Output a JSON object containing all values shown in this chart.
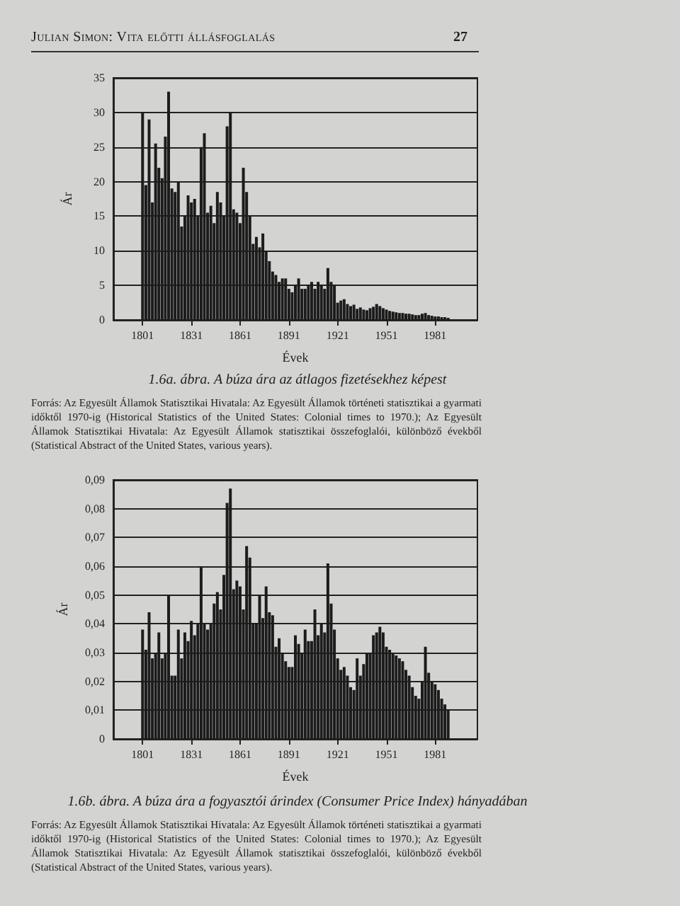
{
  "chart_data": [
    {
      "type": "bar",
      "title": "1.6a. ábra. A búza ára az átlagos fizetésekhez képest",
      "xlabel": "Évek",
      "ylabel": "Ár",
      "x": [
        1801,
        1803,
        1805,
        1807,
        1809,
        1811,
        1813,
        1815,
        1817,
        1819,
        1821,
        1823,
        1825,
        1827,
        1829,
        1831,
        1833,
        1835,
        1837,
        1839,
        1841,
        1843,
        1845,
        1847,
        1849,
        1851,
        1853,
        1855,
        1857,
        1859,
        1861,
        1863,
        1865,
        1867,
        1869,
        1871,
        1873,
        1875,
        1877,
        1879,
        1881,
        1883,
        1885,
        1887,
        1889,
        1891,
        1893,
        1895,
        1897,
        1899,
        1901,
        1903,
        1905,
        1907,
        1909,
        1911,
        1913,
        1915,
        1917,
        1919,
        1921,
        1923,
        1925,
        1927,
        1929,
        1931,
        1933,
        1935,
        1937,
        1939,
        1941,
        1943,
        1945,
        1947,
        1949,
        1951,
        1953,
        1955,
        1957,
        1959,
        1961,
        1963,
        1965,
        1967,
        1969,
        1971,
        1973,
        1975,
        1977,
        1979,
        1981,
        1983,
        1985,
        1987,
        1989
      ],
      "values": [
        30,
        19.5,
        29,
        17,
        25.5,
        22,
        20.5,
        26.5,
        33,
        19,
        18.5,
        20,
        13.5,
        15,
        18,
        17,
        17.5,
        15,
        25,
        27,
        15.5,
        16.5,
        14,
        18.5,
        17,
        15,
        28,
        30,
        16,
        15.5,
        14,
        22,
        18.5,
        15,
        11,
        12,
        10.5,
        12.5,
        10,
        8.5,
        7,
        6.5,
        5.5,
        6,
        6,
        4.5,
        4,
        5,
        6,
        4.5,
        4.5,
        5,
        5.5,
        4.5,
        5.5,
        5,
        4.5,
        7.5,
        5.5,
        5,
        2.5,
        2.8,
        3,
        2.3,
        2,
        2.2,
        1.6,
        1.8,
        1.5,
        1.4,
        1.7,
        1.9,
        2.3,
        2,
        1.7,
        1.5,
        1.3,
        1.2,
        1.1,
        1,
        1,
        0.9,
        0.9,
        0.8,
        0.7,
        0.7,
        0.9,
        1,
        0.7,
        0.6,
        0.5,
        0.5,
        0.4,
        0.4,
        0.3
      ],
      "color": "#1c1c1c",
      "xlim": [
        1783,
        2007
      ],
      "xticks": [
        1801,
        1831,
        1861,
        1891,
        1921,
        1951,
        1981
      ],
      "ylim": [
        0,
        35
      ],
      "yticks": [
        0,
        5,
        10,
        15,
        20,
        25,
        30,
        35
      ],
      "grid": "y",
      "annotations": [
        "Julian Simon: Vita előtti állásfoglalás",
        "27",
        "Forrás: Az Egyesült Államok Statisztikai Hivatala: Az Egyesült Államok történeti statisztikai a gyarmati időktől 1970-ig (Historical Statistics of the United States: Colonial times to 1970.); Az Egyesült Államok Statisztikai Hivatala: Az Egyesült Államok statisztikai összefoglalói, különböző évekből (Statistical Abstract of the United States, various years)."
      ]
    },
    {
      "type": "bar",
      "title": "1.6b. ábra. A búza ára a fogyasztói árindex (Consumer Price Index) hányadában",
      "xlabel": "Évek",
      "ylabel": "Ár",
      "x": [
        1801,
        1803,
        1805,
        1807,
        1809,
        1811,
        1813,
        1815,
        1817,
        1819,
        1821,
        1823,
        1825,
        1827,
        1829,
        1831,
        1833,
        1835,
        1837,
        1839,
        1841,
        1843,
        1845,
        1847,
        1849,
        1851,
        1853,
        1855,
        1857,
        1859,
        1861,
        1863,
        1865,
        1867,
        1869,
        1871,
        1873,
        1875,
        1877,
        1879,
        1881,
        1883,
        1885,
        1887,
        1889,
        1891,
        1893,
        1895,
        1897,
        1899,
        1901,
        1903,
        1905,
        1907,
        1909,
        1911,
        1913,
        1915,
        1917,
        1919,
        1921,
        1923,
        1925,
        1927,
        1929,
        1931,
        1933,
        1935,
        1937,
        1939,
        1941,
        1943,
        1945,
        1947,
        1949,
        1951,
        1953,
        1955,
        1957,
        1959,
        1961,
        1963,
        1965,
        1967,
        1969,
        1971,
        1973,
        1975,
        1977,
        1979,
        1981,
        1983,
        1985,
        1987,
        1989
      ],
      "values": [
        0.038,
        0.031,
        0.044,
        0.028,
        0.03,
        0.037,
        0.028,
        0.03,
        0.05,
        0.022,
        0.022,
        0.038,
        0.028,
        0.037,
        0.034,
        0.041,
        0.036,
        0.04,
        0.06,
        0.04,
        0.038,
        0.04,
        0.047,
        0.051,
        0.045,
        0.057,
        0.082,
        0.087,
        0.052,
        0.055,
        0.053,
        0.045,
        0.067,
        0.063,
        0.04,
        0.04,
        0.05,
        0.042,
        0.053,
        0.044,
        0.043,
        0.032,
        0.035,
        0.03,
        0.027,
        0.025,
        0.025,
        0.036,
        0.033,
        0.03,
        0.038,
        0.034,
        0.034,
        0.045,
        0.036,
        0.04,
        0.037,
        0.061,
        0.047,
        0.038,
        0.028,
        0.024,
        0.025,
        0.022,
        0.018,
        0.017,
        0.028,
        0.022,
        0.026,
        0.03,
        0.03,
        0.036,
        0.037,
        0.039,
        0.037,
        0.032,
        0.031,
        0.03,
        0.029,
        0.028,
        0.027,
        0.024,
        0.022,
        0.018,
        0.015,
        0.014,
        0.02,
        0.032,
        0.023,
        0.02,
        0.019,
        0.017,
        0.014,
        0.012,
        0.01
      ],
      "color": "#1c1c1c",
      "xlim": [
        1783,
        2007
      ],
      "xticks": [
        1801,
        1831,
        1861,
        1891,
        1921,
        1951,
        1981
      ],
      "ylim": [
        0,
        0.09
      ],
      "yticks": [
        0,
        {
          "value": 0.01,
          "label": "0,01"
        },
        {
          "value": 0.02,
          "label": "0,02"
        },
        {
          "value": 0.03,
          "label": "0,03"
        },
        {
          "value": 0.04,
          "label": "0,04"
        },
        {
          "value": 0.05,
          "label": "0,05"
        },
        {
          "value": 0.06,
          "label": "0,06"
        },
        {
          "value": 0.07,
          "label": "0,07"
        },
        {
          "value": 0.08,
          "label": "0,08"
        },
        {
          "value": 0.09,
          "label": "0,09"
        }
      ],
      "grid": "y",
      "annotations": [
        "Forrás: Az Egyesült Államok Statisztikai Hivatala: Az Egyesült Államok történeti statisztikai a gyarmati időktől 1970-ig (Historical Statistics of the United States: Colonial times to 1970.); Az Egyesült Államok Statisztikai Hivatala: Az Egyesült Államok statisztikai összefoglalói, különböző évekből (Statistical Abstract of the United States, various years)."
      ]
    }
  ]
}
